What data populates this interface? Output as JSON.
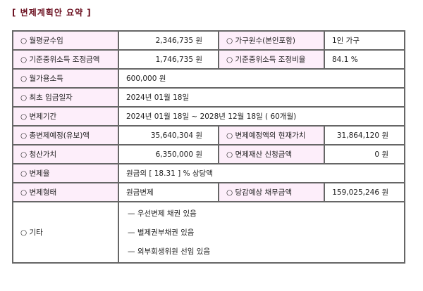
{
  "title": "[ 변제계획안 요약 ]",
  "rows": {
    "monthly_income": {
      "label": "○ 월평균수입",
      "value": "2,346,735 원"
    },
    "household": {
      "label": "○ 가구원수(본인포함)",
      "value": "1인 가구"
    },
    "adj_amount": {
      "label": "○ 기준중위소득 조정금액",
      "value": "1,746,735 원"
    },
    "adj_ratio": {
      "label": "○ 기준중위소득 조정비율",
      "value": "84.1 %"
    },
    "disposable": {
      "label": "○ 월가용소득",
      "value": "600,000 원"
    },
    "first_payment": {
      "label": "○ 최초 입금일자",
      "value": "2024년 01월 18일"
    },
    "period": {
      "label": "○ 변제기간",
      "value": "2024년 01월 18일 ~ 2028년 12월 18일 ( 60개월)"
    },
    "total": {
      "label": "○ 총변제예정(유보)액",
      "value": "35,640,304 원"
    },
    "present_value": {
      "label": "○ 변제예정액의 현재가치",
      "value": "31,864,120 원"
    },
    "liquidation": {
      "label": "○ 청산가치",
      "value": "6,350,000 원"
    },
    "exempt": {
      "label": "○ 면제재산 신청금액",
      "value": "0 원"
    },
    "rate": {
      "label": "○ 변제율",
      "value": "원금의 [ 18.31 ] % 상당액"
    },
    "type": {
      "label": "○ 변제형태",
      "value": "원금변제"
    },
    "debt": {
      "label": "○ 당감예상 채무금액",
      "value": "159,025,246 원"
    },
    "etc": {
      "label": "○ 기타",
      "items": [
        "— 우선변제 채권 있음",
        "— 별제권부채권 있음",
        "— 외부회생위원 선임 있음"
      ]
    }
  }
}
